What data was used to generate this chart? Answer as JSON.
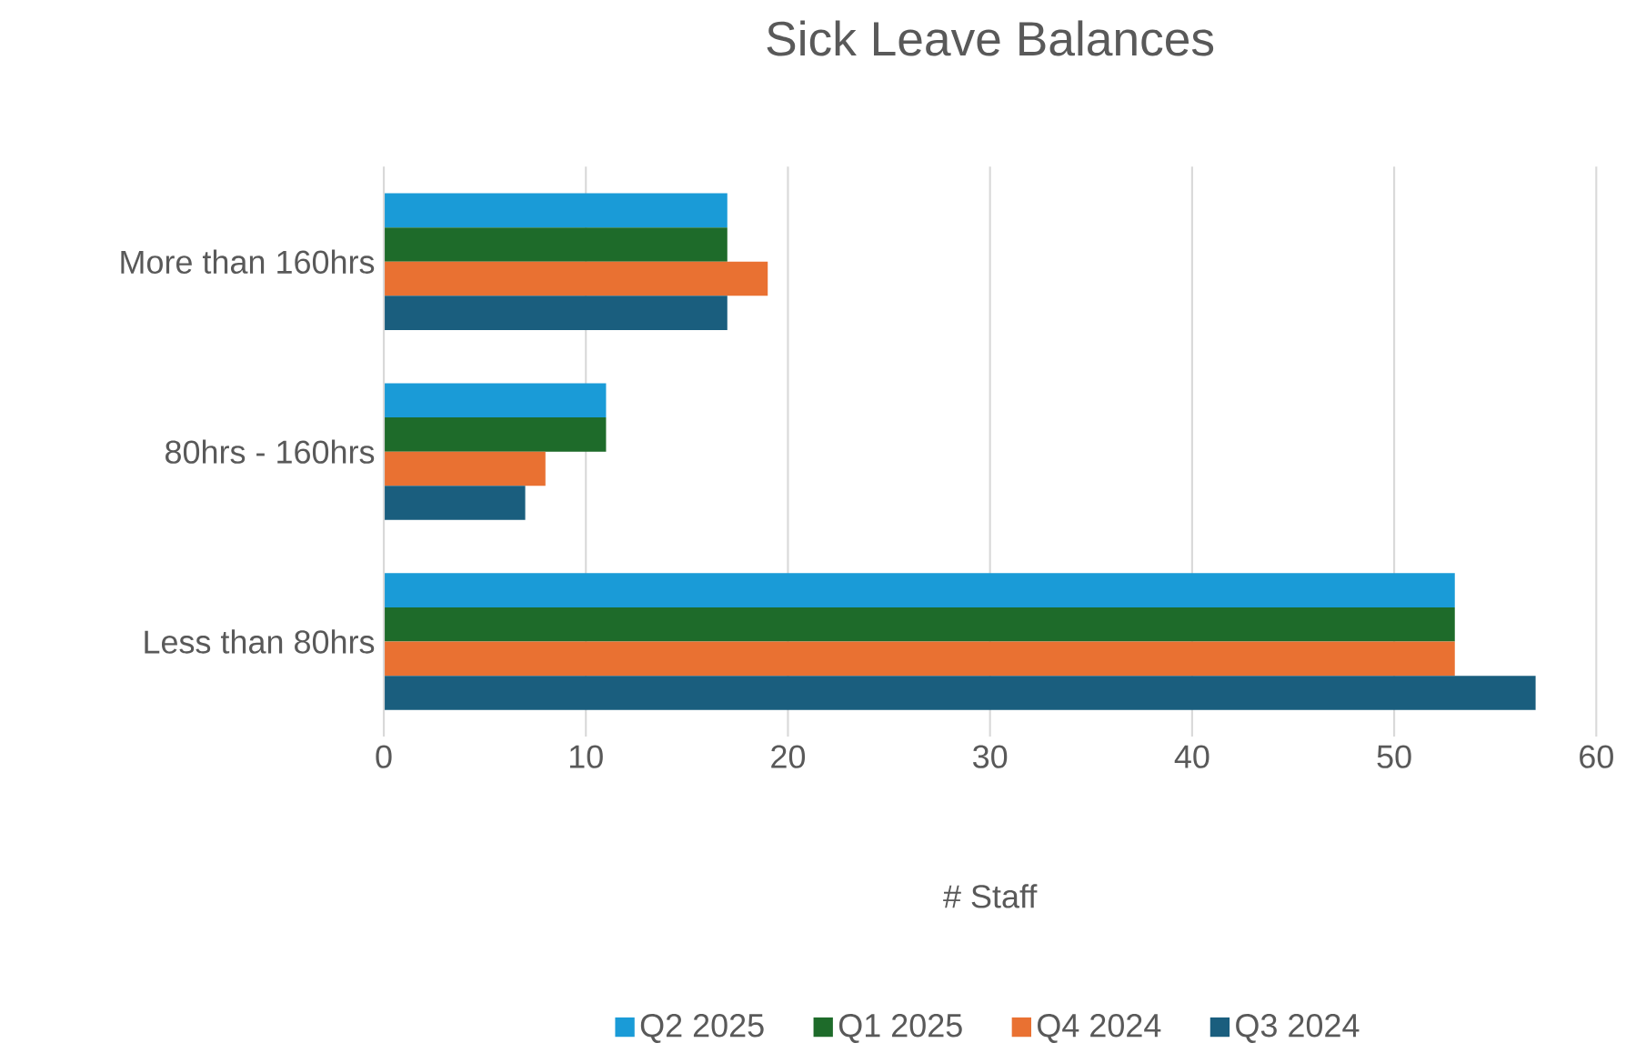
{
  "chart_data": {
    "type": "bar",
    "orientation": "horizontal",
    "title": "Sick Leave Balances",
    "xlabel": "# Staff",
    "categories": [
      "More than 160hrs",
      "80hrs - 160hrs",
      "Less than 80hrs"
    ],
    "series": [
      {
        "name": "Q2 2025",
        "color": "#1a9bd7",
        "values": [
          17,
          11,
          53
        ]
      },
      {
        "name": "Q1 2025",
        "color": "#1e6b2a",
        "values": [
          17,
          11,
          53
        ]
      },
      {
        "name": "Q4 2024",
        "color": "#e97132",
        "values": [
          19,
          8,
          53
        ]
      },
      {
        "name": "Q3 2024",
        "color": "#1a5e7e",
        "values": [
          17,
          7,
          57
        ]
      }
    ],
    "xlim": [
      0,
      60
    ],
    "xticks": [
      0,
      10,
      20,
      30,
      40,
      50,
      60
    ],
    "grid": "x",
    "legend": "bottom"
  }
}
